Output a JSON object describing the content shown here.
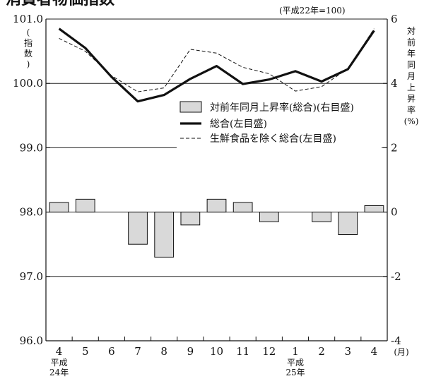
{
  "chart_data": {
    "type": "bar+line",
    "title": "消費者物価指数",
    "note": "(平成22年=100)",
    "ylabel_left": "(指数)",
    "ylabel_right": [
      "対",
      "前",
      "年",
      "同",
      "月",
      "上",
      "昇",
      "率",
      "(%)"
    ],
    "x_unit": "(月)",
    "categories": [
      "4",
      "5",
      "6",
      "7",
      "8",
      "9",
      "10",
      "11",
      "12",
      "1",
      "2",
      "3",
      "4"
    ],
    "era_labels": [
      {
        "index": 0,
        "lines": [
          "平成",
          "24年"
        ]
      },
      {
        "index": 9,
        "lines": [
          "平成",
          "25年"
        ]
      }
    ],
    "left_axis": {
      "ylim": [
        96.0,
        101.0
      ],
      "ticks": [
        "96.0",
        "97.0",
        "98.0",
        "99.0",
        "100.0",
        "101.0"
      ],
      "tick_values": [
        96,
        97,
        98,
        99,
        100,
        101
      ]
    },
    "right_axis": {
      "ylim": [
        -4,
        6
      ],
      "ticks": [
        "-4",
        "-2",
        "0",
        "2",
        "4",
        "6"
      ],
      "tick_values": [
        -4,
        -2,
        0,
        2,
        4,
        6
      ]
    },
    "series": [
      {
        "name": "対前年同月上昇率(総合)(右目盛)",
        "kind": "bar",
        "axis": "right",
        "values": [
          0.3,
          0.4,
          0.0,
          -1.0,
          -1.4,
          -0.4,
          0.4,
          0.3,
          -0.3,
          0.0,
          -0.3,
          -0.7,
          0.2
        ]
      },
      {
        "name": "総合(左目盛)",
        "kind": "line",
        "style": "solid-thick",
        "axis": "left",
        "values": [
          100.85,
          100.55,
          100.1,
          99.72,
          99.82,
          100.07,
          100.27,
          99.99,
          100.06,
          100.19,
          100.03,
          100.22,
          100.82
        ]
      },
      {
        "name": "生鮮食品を除く総合(左目盛)",
        "kind": "line",
        "style": "dashed-thin",
        "axis": "left",
        "values": [
          100.7,
          100.5,
          100.12,
          99.87,
          99.93,
          100.53,
          100.47,
          100.25,
          100.15,
          99.88,
          99.95,
          100.23,
          100.85
        ]
      }
    ],
    "grid": "horizontal at left ticks"
  }
}
